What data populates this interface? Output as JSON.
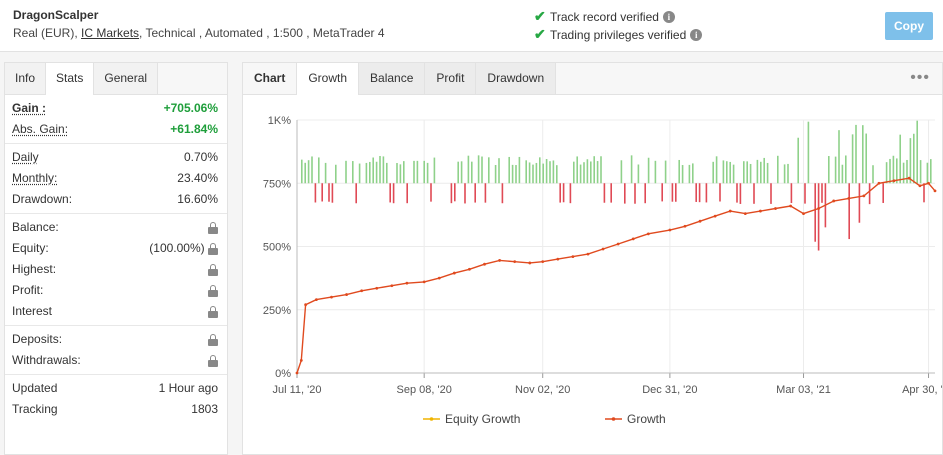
{
  "header": {
    "system_name": "DragonScalper",
    "account_prefix": "Real (EUR),",
    "broker": "IC Markets",
    "account_suffix": ", Technical , Automated , 1:500 , MetaTrader 4",
    "track_record": "Track record verified",
    "trading_privileges": "Trading privileges verified",
    "copy_label": "Copy"
  },
  "left_tabs": [
    "Info",
    "Stats",
    "General"
  ],
  "stats": {
    "gain_label": "Gain :",
    "gain_value": "+705.06%",
    "abs_gain_label": "Abs. Gain:",
    "abs_gain_value": "+61.84%",
    "daily_label": "Daily",
    "daily_value": "0.70%",
    "monthly_label": "Monthly:",
    "monthly_value": "23.40%",
    "drawdown_label": "Drawdown:",
    "drawdown_value": "16.60%",
    "balance_label": "Balance:",
    "equity_label": "Equity:",
    "equity_value": "(100.00%)",
    "highest_label": "Highest:",
    "profit_label": "Profit:",
    "interest_label": "Interest",
    "deposits_label": "Deposits:",
    "withdrawals_label": "Withdrawals:",
    "updated_label": "Updated",
    "updated_value": "1 Hour ago",
    "tracking_label": "Tracking",
    "tracking_value": "1803"
  },
  "right_tabs": {
    "chart": "Chart",
    "growth": "Growth",
    "balance": "Balance",
    "profit": "Profit",
    "drawdown": "Drawdown"
  },
  "colors": {
    "green": "#27a844",
    "growth_line": "#e04a1f",
    "equity_line": "#f0b400",
    "bar_up": "#8fd18a",
    "bar_down": "#e04a55",
    "copy_button": "#7ec0ea"
  },
  "chart_data": {
    "type": "line",
    "y_ticks": [
      "0%",
      "250%",
      "500%",
      "750%",
      "1K%"
    ],
    "x_ticks": [
      "Jul 11, '20",
      "Sep 08, '20",
      "Nov 02, '20",
      "Dec 31, '20",
      "Mar 03, '21",
      "Apr 30, '21"
    ],
    "ylim": [
      0,
      1000
    ],
    "grid": true,
    "legend_position": "bottom",
    "series": [
      {
        "name": "Equity Growth",
        "color": "#f0b400"
      },
      {
        "name": "Growth",
        "color": "#e04a1f",
        "x": [
          "2020-07-11",
          "2020-07-13",
          "2020-07-15",
          "2020-07-20",
          "2020-07-27",
          "2020-08-03",
          "2020-08-10",
          "2020-08-17",
          "2020-08-24",
          "2020-08-31",
          "2020-09-08",
          "2020-09-15",
          "2020-09-22",
          "2020-09-29",
          "2020-10-06",
          "2020-10-13",
          "2020-10-20",
          "2020-10-27",
          "2020-11-02",
          "2020-11-09",
          "2020-11-16",
          "2020-11-23",
          "2020-11-30",
          "2020-12-07",
          "2020-12-14",
          "2020-12-21",
          "2020-12-31",
          "2021-01-07",
          "2021-01-14",
          "2021-01-21",
          "2021-01-28",
          "2021-02-04",
          "2021-02-11",
          "2021-02-18",
          "2021-02-25",
          "2021-03-03",
          "2021-03-10",
          "2021-03-17",
          "2021-03-24",
          "2021-03-31",
          "2021-04-07",
          "2021-04-14",
          "2021-04-21",
          "2021-04-26",
          "2021-04-30",
          "2021-05-03"
        ],
        "y": [
          0,
          50,
          270,
          290,
          300,
          310,
          325,
          335,
          345,
          355,
          360,
          375,
          395,
          410,
          430,
          445,
          440,
          435,
          440,
          450,
          460,
          470,
          490,
          510,
          530,
          550,
          565,
          580,
          600,
          620,
          640,
          630,
          640,
          650,
          660,
          630,
          650,
          680,
          690,
          700,
          750,
          760,
          770,
          740,
          750,
          720
        ]
      }
    ],
    "bars": {
      "up_level": 830,
      "down_level": 670
    }
  }
}
